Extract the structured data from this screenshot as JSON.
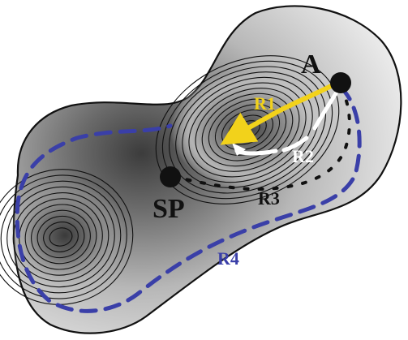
{
  "labels": {
    "point_a": "A",
    "saddle_point": "SP",
    "route_1": "R1",
    "route_2": "R2",
    "route_3": "R3",
    "route_4": "R4"
  },
  "colors": {
    "route_1": "#f2d21b",
    "route_2": "#ffffff",
    "route_3": "#111111",
    "route_4": "#3a3fa8",
    "outline": "#111111"
  }
}
